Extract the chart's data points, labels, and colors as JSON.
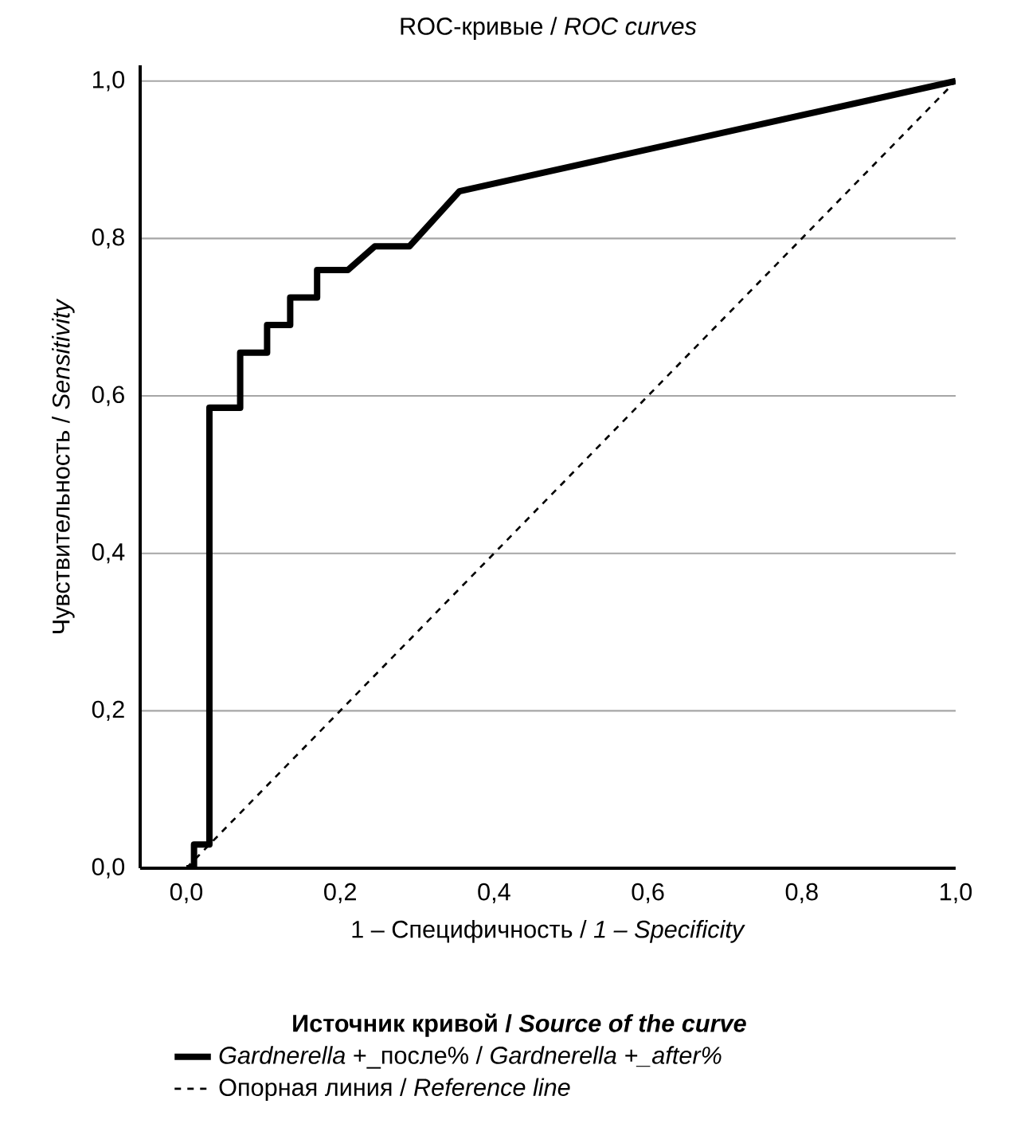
{
  "chart_data": {
    "type": "line",
    "title": "ROC-кривые / *ROC curves*",
    "xlabel": "1 – Специфичность / *1 – Specificity*",
    "ylabel": "Чувствительность / *Sensitivity*",
    "legend_title": "Источник кривой / *Source of the curve*",
    "xlim": [
      -0.06,
      1.0
    ],
    "ylim": [
      0,
      1.02
    ],
    "xticks": [
      {
        "value": 0,
        "label": "0,0"
      },
      {
        "value": 0.2,
        "label": "0,2"
      },
      {
        "value": 0.4,
        "label": "0,4"
      },
      {
        "value": 0.6,
        "label": "0,6"
      },
      {
        "value": 0.8,
        "label": "0,8"
      },
      {
        "value": 1.0,
        "label": "1,0"
      }
    ],
    "yticks": [
      {
        "value": 0,
        "label": "0,0"
      },
      {
        "value": 0.2,
        "label": "0,2"
      },
      {
        "value": 0.4,
        "label": "0,4"
      },
      {
        "value": 0.6,
        "label": "0,6"
      },
      {
        "value": 0.8,
        "label": "0,8"
      },
      {
        "value": 1.0,
        "label": "1,0"
      }
    ],
    "grid": "y",
    "legend": "bottom",
    "marker": "none",
    "series": [
      {
        "name": "*Gardnerella* +_после% / *Gardnerella +_after%*",
        "color": "#000000",
        "line_style": "solid",
        "x": [
          0,
          0.01,
          0.01,
          0.03,
          0.03,
          0.07,
          0.07,
          0.105,
          0.105,
          0.135,
          0.135,
          0.17,
          0.17,
          0.21,
          0.245,
          0.29,
          0.355,
          1.0
        ],
        "values": [
          0,
          0,
          0.03,
          0.03,
          0.585,
          0.585,
          0.655,
          0.655,
          0.69,
          0.69,
          0.725,
          0.725,
          0.76,
          0.76,
          0.79,
          0.79,
          0.86,
          1.0
        ]
      },
      {
        "name": "Опорная линия / *Reference line*",
        "color": "#000000",
        "line_style": "dashed",
        "x": [
          0,
          1.0
        ],
        "values": [
          0,
          1.0
        ]
      }
    ]
  }
}
